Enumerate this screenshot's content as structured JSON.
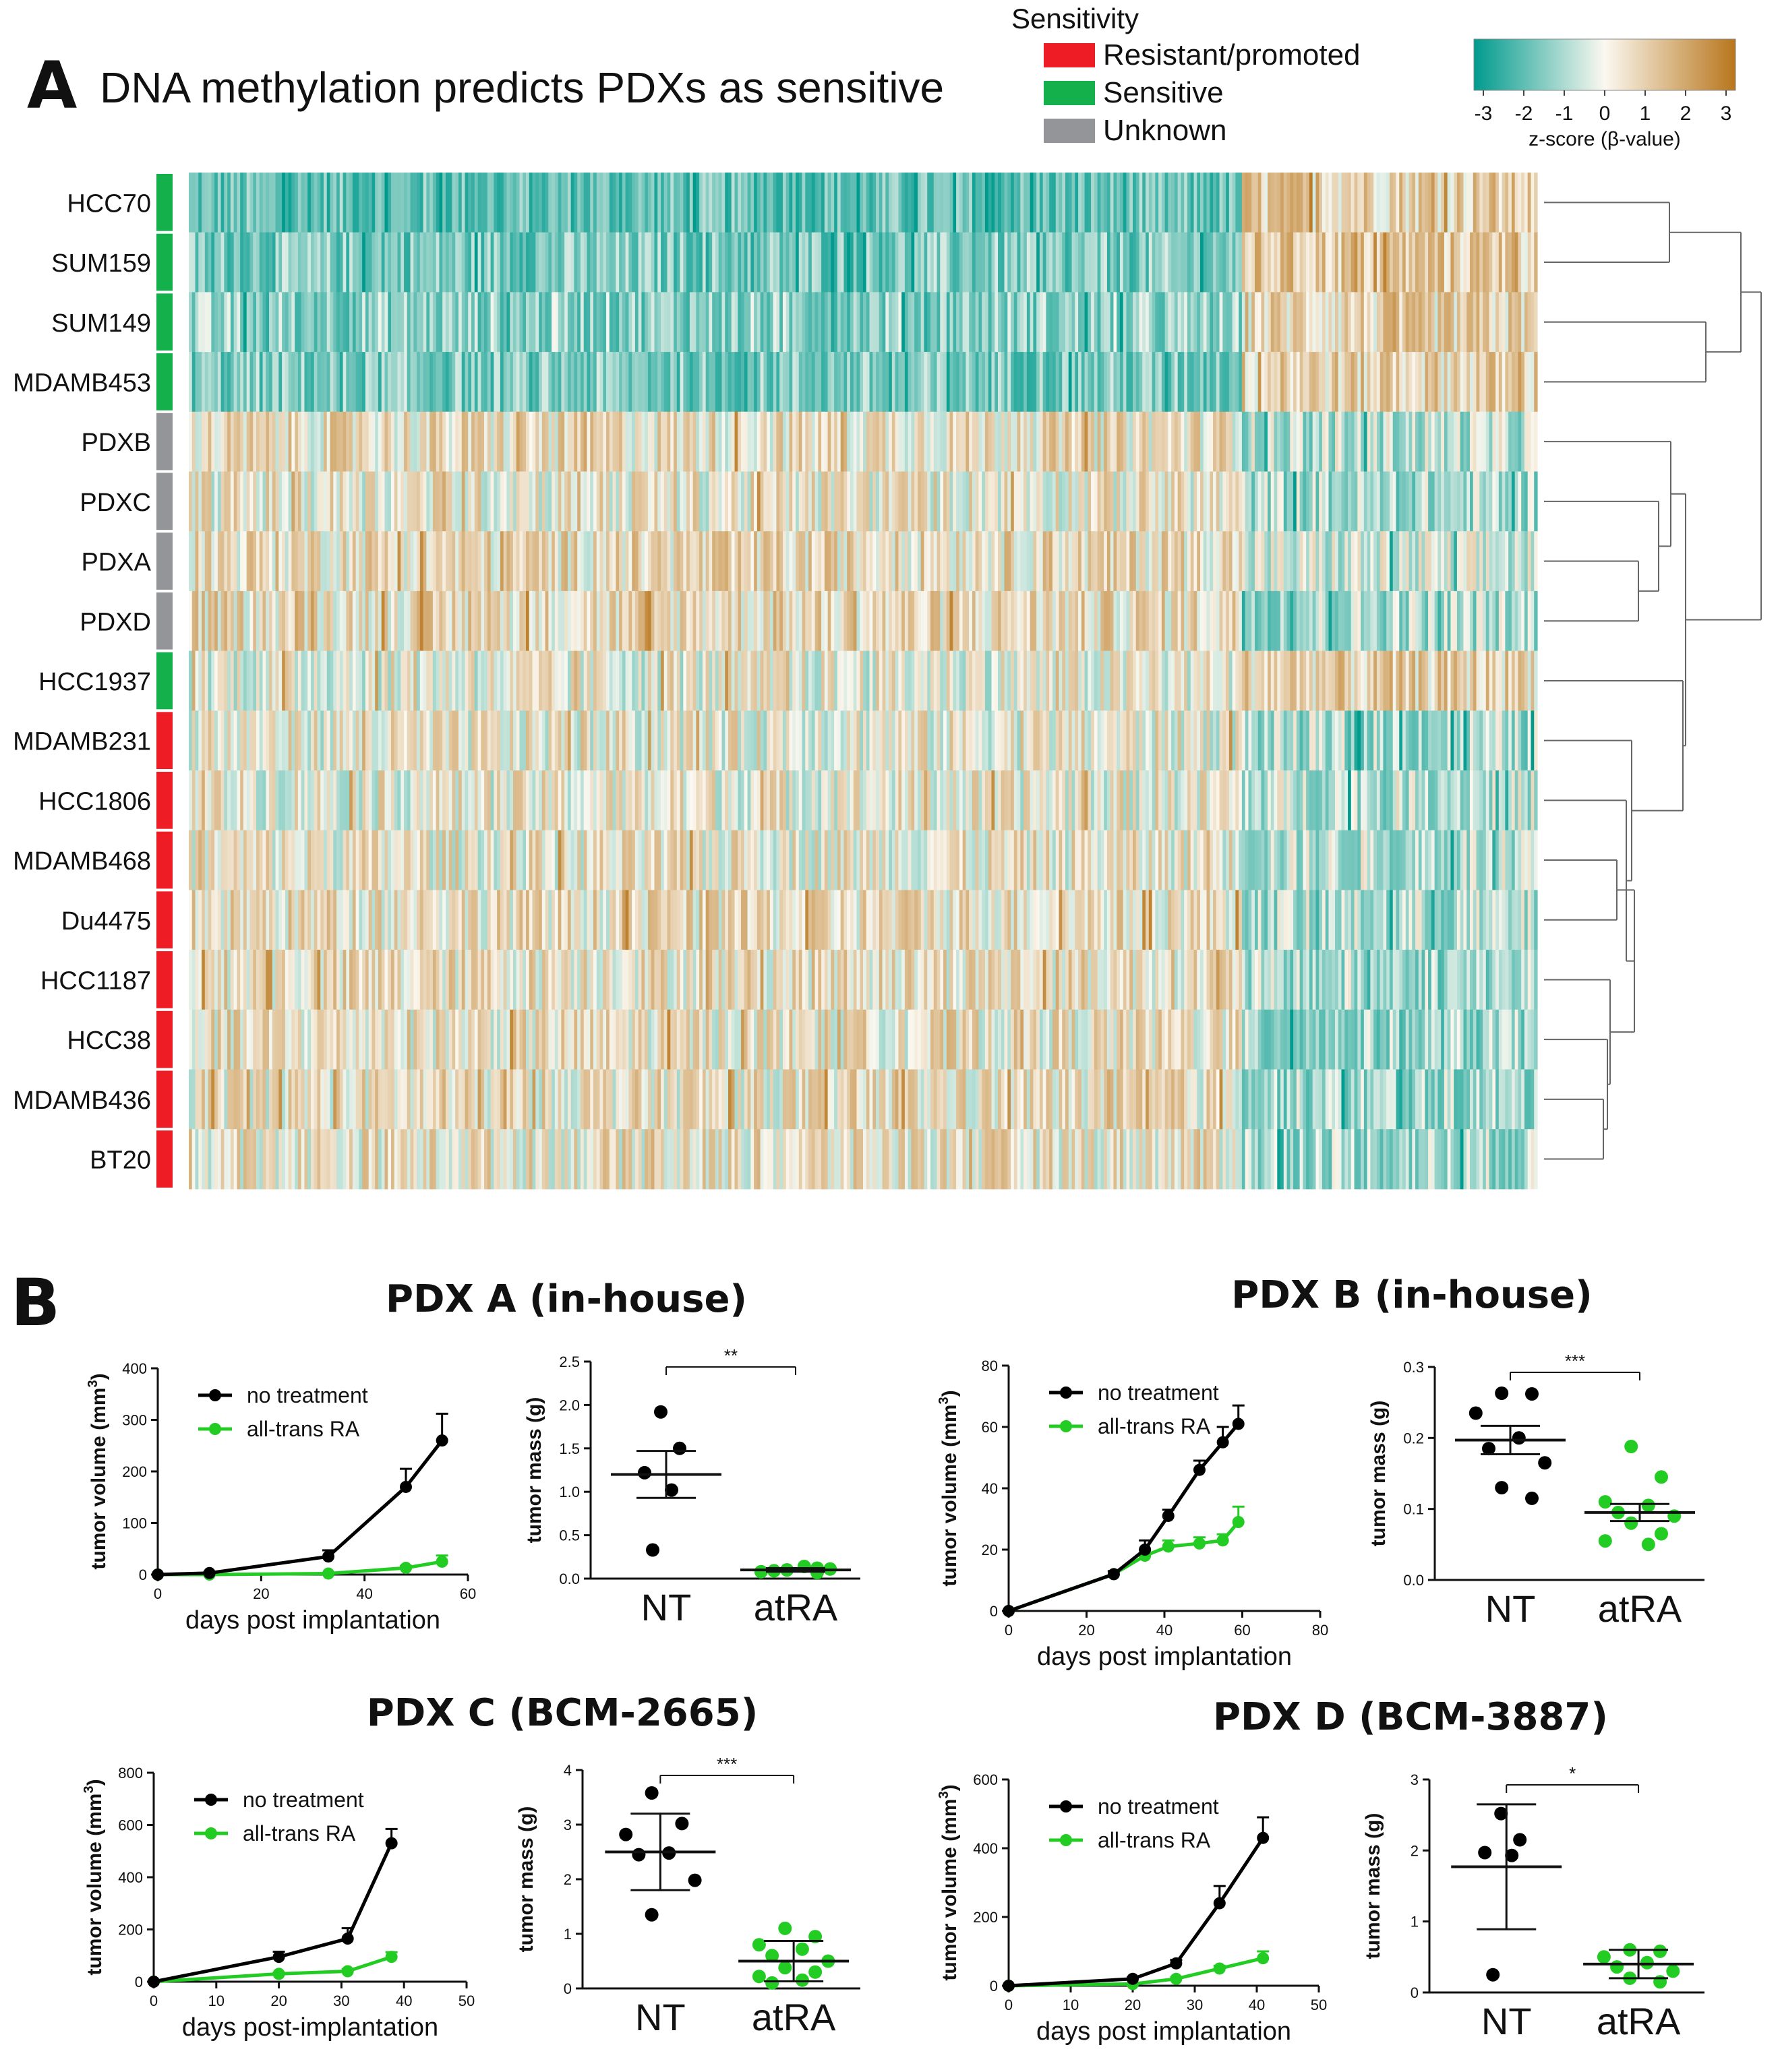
{
  "panelA": {
    "letter": "A",
    "title": "DNA methylation predicts PDXs as sensitive",
    "legend": {
      "title": "Sensitivity",
      "items": [
        {
          "label": "Resistant/promoted",
          "color": "#ee1c25"
        },
        {
          "label": "Sensitive",
          "color": "#14b04c"
        },
        {
          "label": "Unknown",
          "color": "#939598"
        }
      ]
    },
    "colorbar": {
      "ticks": [
        "-3",
        "-2",
        "-1",
        "0",
        "1",
        "2",
        "3"
      ],
      "label": "z-score (β-value)",
      "low_color": "#009a8e",
      "mid_color": "#fbf8f0",
      "high_color": "#b8761c"
    },
    "rows": [
      {
        "label": "HCC70",
        "group": "Sensitive"
      },
      {
        "label": "SUM159",
        "group": "Sensitive"
      },
      {
        "label": "SUM149",
        "group": "Sensitive"
      },
      {
        "label": "MDAMB453",
        "group": "Sensitive"
      },
      {
        "label": "PDXB",
        "group": "Unknown"
      },
      {
        "label": "PDXC",
        "group": "Unknown"
      },
      {
        "label": "PDXA",
        "group": "Unknown"
      },
      {
        "label": "PDXD",
        "group": "Unknown"
      },
      {
        "label": "HCC1937",
        "group": "Sensitive"
      },
      {
        "label": "MDAMB231",
        "group": "Resistant/promoted"
      },
      {
        "label": "HCC1806",
        "group": "Resistant/promoted"
      },
      {
        "label": "MDAMB468",
        "group": "Resistant/promoted"
      },
      {
        "label": "Du4475",
        "group": "Resistant/promoted"
      },
      {
        "label": "HCC1187",
        "group": "Resistant/promoted"
      },
      {
        "label": "HCC38",
        "group": "Resistant/promoted"
      },
      {
        "label": "MDAMB436",
        "group": "Resistant/promoted"
      },
      {
        "label": "BT20",
        "group": "Resistant/promoted"
      }
    ]
  },
  "panelB": {
    "letter": "B"
  },
  "chart_data": [
    {
      "type": "line",
      "panel": "PDX A (in-house)",
      "title": "PDX A (in-house)",
      "xlabel": "days post implantation",
      "ylabel": "tumor volume (mm",
      "ylabel_sup": "3",
      "xlim": [
        0,
        60
      ],
      "ylim": [
        0,
        400
      ],
      "xticks": [
        "0",
        "20",
        "40",
        "60"
      ],
      "yticks": [
        "0",
        "100",
        "200",
        "300",
        "400"
      ],
      "series": [
        {
          "name": "no treatment",
          "color": "#000000",
          "x": [
            0,
            10,
            33,
            48,
            55
          ],
          "y": [
            0,
            3,
            35,
            170,
            260
          ],
          "err": [
            0,
            2,
            12,
            35,
            52
          ]
        },
        {
          "name": "all-trans RA",
          "color": "#22cc22",
          "x": [
            0,
            10,
            33,
            48,
            55
          ],
          "y": [
            0,
            0,
            2,
            13,
            25
          ],
          "err": [
            0,
            0,
            1,
            4,
            12
          ]
        }
      ]
    },
    {
      "type": "scatter",
      "panel": "PDX A (in-house)",
      "ylabel": "tumor mass (g)",
      "ylim": [
        0,
        2.5
      ],
      "yticks": [
        "0.0",
        "0.5",
        "1.0",
        "1.5",
        "2.0",
        "2.5"
      ],
      "categories": [
        "NT",
        "atRA"
      ],
      "significance": "**",
      "groups": [
        {
          "name": "NT",
          "color": "#000000",
          "mean": 1.2,
          "err": 0.27,
          "points": [
            1.92,
            1.5,
            1.22,
            1.02,
            0.33
          ]
        },
        {
          "name": "atRA",
          "color": "#22cc22",
          "mean": 0.1,
          "err": 0.02,
          "points": [
            0.1,
            0.12,
            0.08,
            0.14,
            0.09,
            0.11,
            0.1,
            0.07
          ]
        }
      ]
    },
    {
      "type": "line",
      "panel": "PDX B (in-house)",
      "title": "PDX B (in-house)",
      "xlabel": "days post implantation",
      "ylabel": "tumor volume (mm",
      "ylabel_sup": "3",
      "xlim": [
        0,
        80
      ],
      "ylim": [
        0,
        80
      ],
      "xticks": [
        "0",
        "20",
        "40",
        "60",
        "80"
      ],
      "yticks": [
        "0",
        "20",
        "40",
        "60",
        "80"
      ],
      "series": [
        {
          "name": "no treatment",
          "color": "#000000",
          "x": [
            0,
            27,
            35,
            41,
            49,
            55,
            59
          ],
          "y": [
            0,
            12,
            20,
            31,
            46,
            55,
            61
          ],
          "err": [
            0,
            1,
            3,
            2,
            3,
            5,
            6
          ]
        },
        {
          "name": "all-trans RA",
          "color": "#22cc22",
          "x": [
            0,
            27,
            35,
            41,
            49,
            55,
            59
          ],
          "y": [
            0,
            12,
            18,
            21,
            22,
            23,
            29
          ],
          "err": [
            0,
            1,
            2,
            2,
            2,
            2,
            5
          ]
        }
      ]
    },
    {
      "type": "scatter",
      "panel": "PDX B (in-house)",
      "ylabel": "tumor mass (g)",
      "ylim": [
        0,
        0.3
      ],
      "yticks": [
        "0.0",
        "0.1",
        "0.2",
        "0.3"
      ],
      "categories": [
        "NT",
        "atRA"
      ],
      "significance": "***",
      "groups": [
        {
          "name": "NT",
          "color": "#000000",
          "mean": 0.197,
          "err": 0.02,
          "points": [
            0.263,
            0.262,
            0.235,
            0.2,
            0.185,
            0.165,
            0.13,
            0.115
          ]
        },
        {
          "name": "atRA",
          "color": "#22cc22",
          "mean": 0.095,
          "err": 0.012,
          "points": [
            0.188,
            0.145,
            0.11,
            0.105,
            0.095,
            0.09,
            0.08,
            0.065,
            0.055,
            0.05
          ]
        }
      ]
    },
    {
      "type": "line",
      "panel": "PDX C (BCM-2665)",
      "title": "PDX C (BCM-2665)",
      "xlabel": "days post-implantation",
      "ylabel": "tumor volume (mm",
      "ylabel_sup": "3",
      "xlim": [
        0,
        50
      ],
      "ylim": [
        0,
        800
      ],
      "xticks": [
        "0",
        "10",
        "20",
        "30",
        "40",
        "50"
      ],
      "yticks": [
        "0",
        "200",
        "400",
        "600",
        "800"
      ],
      "series": [
        {
          "name": "no treatment",
          "color": "#000000",
          "x": [
            0,
            20,
            31,
            38
          ],
          "y": [
            0,
            95,
            165,
            530
          ],
          "err": [
            0,
            20,
            40,
            55
          ]
        },
        {
          "name": "all-trans RA",
          "color": "#22cc22",
          "x": [
            0,
            20,
            31,
            38
          ],
          "y": [
            0,
            30,
            40,
            95
          ],
          "err": [
            0,
            5,
            8,
            18
          ]
        }
      ]
    },
    {
      "type": "scatter",
      "panel": "PDX C (BCM-2665)",
      "ylabel": "tumor mass (g)",
      "ylim": [
        0,
        4
      ],
      "yticks": [
        "0",
        "1",
        "2",
        "3",
        "4"
      ],
      "categories": [
        "NT",
        "atRA"
      ],
      "significance": "***",
      "groups": [
        {
          "name": "NT",
          "color": "#000000",
          "mean": 2.5,
          "err": 0.7,
          "points": [
            3.58,
            3.02,
            2.82,
            2.48,
            2.45,
            1.98,
            1.35
          ]
        },
        {
          "name": "atRA",
          "color": "#22cc22",
          "mean": 0.5,
          "err": 0.37,
          "points": [
            1.1,
            0.95,
            0.8,
            0.72,
            0.6,
            0.5,
            0.38,
            0.3,
            0.22,
            0.15,
            0.1
          ]
        }
      ]
    },
    {
      "type": "line",
      "panel": "PDX D (BCM-3887)",
      "title": "PDX D (BCM-3887)",
      "xlabel": "days post implantation",
      "ylabel": "tumor volume (mm",
      "ylabel_sup": "3",
      "xlim": [
        0,
        50
      ],
      "ylim": [
        0,
        600
      ],
      "xticks": [
        "0",
        "10",
        "20",
        "30",
        "40",
        "50"
      ],
      "yticks": [
        "0",
        "200",
        "400",
        "600"
      ],
      "series": [
        {
          "name": "no treatment",
          "color": "#000000",
          "x": [
            0,
            20,
            27,
            34,
            41
          ],
          "y": [
            0,
            20,
            65,
            240,
            430
          ],
          "err": [
            0,
            4,
            10,
            50,
            60
          ]
        },
        {
          "name": "all-trans RA",
          "color": "#22cc22",
          "x": [
            0,
            20,
            27,
            34,
            41
          ],
          "y": [
            0,
            5,
            20,
            50,
            80
          ],
          "err": [
            0,
            2,
            5,
            8,
            20
          ]
        }
      ]
    },
    {
      "type": "scatter",
      "panel": "PDX D (BCM-3887)",
      "ylabel": "tumor mass (g)",
      "ylim": [
        0,
        3
      ],
      "yticks": [
        "0",
        "1",
        "2",
        "3"
      ],
      "categories": [
        "NT",
        "atRA"
      ],
      "significance": "*",
      "groups": [
        {
          "name": "NT",
          "color": "#000000",
          "mean": 1.77,
          "err": 0.88,
          "points": [
            2.52,
            2.15,
            1.97,
            1.93,
            0.25
          ]
        },
        {
          "name": "atRA",
          "color": "#22cc22",
          "mean": 0.4,
          "err": 0.2,
          "points": [
            0.6,
            0.58,
            0.5,
            0.42,
            0.36,
            0.3,
            0.2,
            0.15
          ]
        }
      ]
    }
  ]
}
